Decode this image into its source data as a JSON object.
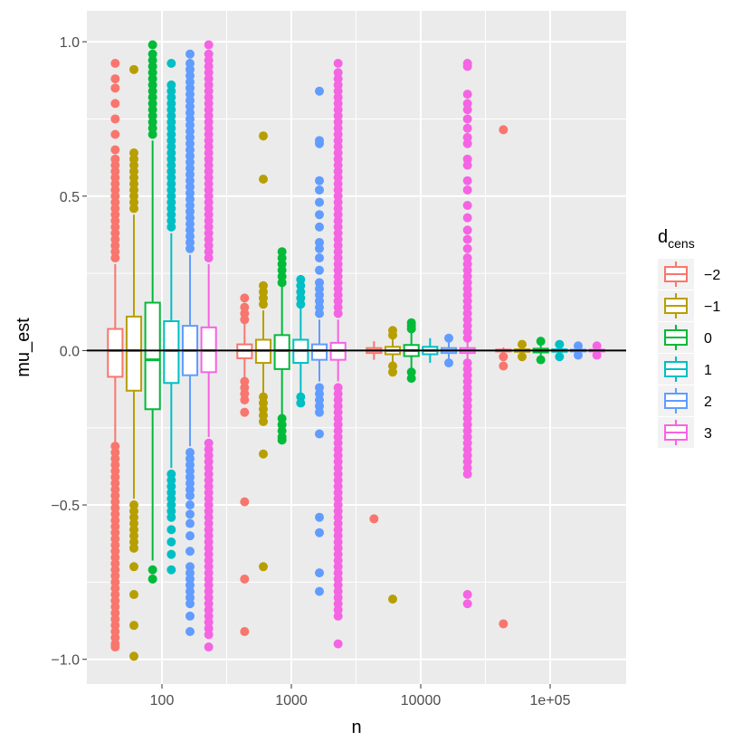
{
  "chart_data": {
    "type": "boxplot",
    "xlabel": "n",
    "ylabel": "mu_est",
    "x_scale": "log10",
    "ylim": [
      -1.08,
      1.1
    ],
    "y_ticks": [
      {
        "value": 1.0,
        "label": "1.0"
      },
      {
        "value": 0.5,
        "label": "0.5"
      },
      {
        "value": 0.0,
        "label": "0.0"
      },
      {
        "value": -0.5,
        "label": "−0.5"
      },
      {
        "value": -1.0,
        "label": "−1.0"
      }
    ],
    "categories": [
      {
        "value": 100,
        "label": "100"
      },
      {
        "value": 1000,
        "label": "1000"
      },
      {
        "value": 10000,
        "label": "10000"
      },
      {
        "value": 100000,
        "label": "1e+05"
      }
    ],
    "hline": 0,
    "grid": true,
    "legend": {
      "title_main": "d",
      "title_sub": "cens",
      "position": "right"
    },
    "series": [
      {
        "name": "−2",
        "color": "#F8766D",
        "boxes": [
          {
            "n": 100,
            "q1": -0.085,
            "median": 0.0,
            "q3": 0.07,
            "lower": -0.3,
            "upper": 0.28,
            "outliers_high": [
              0.3,
              0.32,
              0.34,
              0.36,
              0.38,
              0.4,
              0.42,
              0.44,
              0.46,
              0.48,
              0.5,
              0.52,
              0.54,
              0.56,
              0.58,
              0.6,
              0.62,
              0.65,
              0.7,
              0.75,
              0.8,
              0.85,
              0.88,
              0.93
            ],
            "outliers_low": [
              -0.31,
              -0.33,
              -0.35,
              -0.37,
              -0.39,
              -0.41,
              -0.43,
              -0.45,
              -0.47,
              -0.49,
              -0.51,
              -0.53,
              -0.55,
              -0.57,
              -0.59,
              -0.61,
              -0.63,
              -0.65,
              -0.67,
              -0.69,
              -0.71,
              -0.73,
              -0.75,
              -0.77,
              -0.79,
              -0.81,
              -0.83,
              -0.85,
              -0.87,
              -0.89,
              -0.91,
              -0.93,
              -0.95,
              -0.96
            ]
          },
          {
            "n": 1000,
            "q1": -0.025,
            "median": 0.0,
            "q3": 0.02,
            "lower": -0.09,
            "upper": 0.09,
            "outliers_high": [
              0.1,
              0.12,
              0.14,
              0.17
            ],
            "outliers_low": [
              -0.1,
              -0.12,
              -0.14,
              -0.16,
              -0.2,
              -0.49,
              -0.74,
              -0.91
            ]
          },
          {
            "n": 10000,
            "q1": -0.008,
            "median": 0.0,
            "q3": 0.008,
            "lower": -0.03,
            "upper": 0.03,
            "outliers_high": [],
            "outliers_low": [
              -0.545
            ]
          },
          {
            "n": 100000,
            "q1": -0.003,
            "median": 0.0,
            "q3": 0.003,
            "lower": -0.01,
            "upper": 0.01,
            "outliers_high": [
              0.715
            ],
            "outliers_low": [
              -0.02,
              -0.05,
              -0.885
            ]
          }
        ]
      },
      {
        "name": "−1",
        "color": "#B79F00",
        "boxes": [
          {
            "n": 100,
            "q1": -0.13,
            "median": 0.0,
            "q3": 0.11,
            "lower": -0.48,
            "upper": 0.44,
            "outliers_high": [
              0.46,
              0.48,
              0.5,
              0.52,
              0.54,
              0.56,
              0.58,
              0.6,
              0.62,
              0.64,
              0.91
            ],
            "outliers_low": [
              -0.5,
              -0.52,
              -0.54,
              -0.56,
              -0.58,
              -0.6,
              -0.62,
              -0.64,
              -0.7,
              -0.79,
              -0.89,
              -0.99
            ]
          },
          {
            "n": 1000,
            "q1": -0.04,
            "median": 0.0,
            "q3": 0.035,
            "lower": -0.14,
            "upper": 0.13,
            "outliers_high": [
              0.15,
              0.17,
              0.19,
              0.21,
              0.555,
              0.695
            ],
            "outliers_low": [
              -0.15,
              -0.17,
              -0.19,
              -0.21,
              -0.23,
              -0.335,
              -0.7
            ]
          },
          {
            "n": 10000,
            "q1": -0.012,
            "median": 0.0,
            "q3": 0.012,
            "lower": -0.045,
            "upper": 0.045,
            "outliers_high": [
              0.05,
              0.065
            ],
            "outliers_low": [
              -0.05,
              -0.07,
              -0.805
            ]
          },
          {
            "n": 100000,
            "q1": -0.004,
            "median": 0.0,
            "q3": 0.004,
            "lower": -0.015,
            "upper": 0.015,
            "outliers_high": [
              0.02
            ],
            "outliers_low": [
              -0.02
            ]
          }
        ]
      },
      {
        "name": "0",
        "color": "#00BA38",
        "boxes": [
          {
            "n": 100,
            "q1": -0.19,
            "median": -0.03,
            "q3": 0.155,
            "lower": -0.68,
            "upper": 0.68,
            "outliers_high": [
              0.7,
              0.72,
              0.74,
              0.76,
              0.78,
              0.8,
              0.82,
              0.84,
              0.86,
              0.88,
              0.9,
              0.92,
              0.94,
              0.96,
              0.99
            ],
            "outliers_low": [
              -0.71,
              -0.74
            ]
          },
          {
            "n": 1000,
            "q1": -0.06,
            "median": 0.0,
            "q3": 0.05,
            "lower": -0.21,
            "upper": 0.21,
            "outliers_high": [
              0.22,
              0.24,
              0.26,
              0.28,
              0.3,
              0.32
            ],
            "outliers_low": [
              -0.22,
              -0.24,
              -0.26,
              -0.28,
              -0.29
            ]
          },
          {
            "n": 10000,
            "q1": -0.018,
            "median": 0.0,
            "q3": 0.018,
            "lower": -0.06,
            "upper": 0.06,
            "outliers_high": [
              0.07,
              0.08,
              0.09
            ],
            "outliers_low": [
              -0.07,
              -0.09
            ]
          },
          {
            "n": 100000,
            "q1": -0.006,
            "median": 0.0,
            "q3": 0.006,
            "lower": -0.02,
            "upper": 0.02,
            "outliers_high": [
              0.03
            ],
            "outliers_low": [
              -0.03
            ]
          }
        ]
      },
      {
        "name": "1",
        "color": "#00BFC4",
        "boxes": [
          {
            "n": 100,
            "q1": -0.105,
            "median": 0.0,
            "q3": 0.095,
            "lower": -0.38,
            "upper": 0.38,
            "outliers_high": [
              0.4,
              0.42,
              0.44,
              0.46,
              0.48,
              0.5,
              0.52,
              0.54,
              0.56,
              0.58,
              0.6,
              0.62,
              0.64,
              0.66,
              0.68,
              0.7,
              0.72,
              0.74,
              0.76,
              0.78,
              0.8,
              0.82,
              0.84,
              0.86,
              0.93
            ],
            "outliers_low": [
              -0.4,
              -0.42,
              -0.44,
              -0.46,
              -0.48,
              -0.5,
              -0.52,
              -0.54,
              -0.58,
              -0.62,
              -0.66,
              -0.71
            ]
          },
          {
            "n": 1000,
            "q1": -0.04,
            "median": 0.0,
            "q3": 0.035,
            "lower": -0.14,
            "upper": 0.14,
            "outliers_high": [
              0.15,
              0.17,
              0.19,
              0.21,
              0.23
            ],
            "outliers_low": [
              -0.15,
              -0.17
            ]
          },
          {
            "n": 10000,
            "q1": -0.012,
            "median": 0.0,
            "q3": 0.012,
            "lower": -0.04,
            "upper": 0.04,
            "outliers_high": [],
            "outliers_low": []
          },
          {
            "n": 100000,
            "q1": -0.004,
            "median": 0.0,
            "q3": 0.004,
            "lower": -0.015,
            "upper": 0.015,
            "outliers_high": [
              0.02
            ],
            "outliers_low": [
              -0.02
            ]
          }
        ]
      },
      {
        "name": "2",
        "color": "#619CFF",
        "boxes": [
          {
            "n": 100,
            "q1": -0.08,
            "median": 0.0,
            "q3": 0.08,
            "lower": -0.31,
            "upper": 0.31,
            "outliers_high": [
              0.33,
              0.35,
              0.37,
              0.39,
              0.41,
              0.43,
              0.45,
              0.47,
              0.49,
              0.51,
              0.53,
              0.55,
              0.57,
              0.59,
              0.61,
              0.63,
              0.65,
              0.67,
              0.69,
              0.71,
              0.73,
              0.75,
              0.77,
              0.79,
              0.81,
              0.83,
              0.85,
              0.87,
              0.89,
              0.91,
              0.93,
              0.96
            ],
            "outliers_low": [
              -0.33,
              -0.35,
              -0.37,
              -0.39,
              -0.41,
              -0.43,
              -0.45,
              -0.47,
              -0.5,
              -0.53,
              -0.56,
              -0.6,
              -0.65,
              -0.7,
              -0.72,
              -0.74,
              -0.76,
              -0.78,
              -0.8,
              -0.82,
              -0.86,
              -0.91
            ]
          },
          {
            "n": 1000,
            "q1": -0.03,
            "median": 0.0,
            "q3": 0.02,
            "lower": -0.1,
            "upper": 0.1,
            "outliers_high": [
              0.12,
              0.14,
              0.16,
              0.18,
              0.2,
              0.22,
              0.26,
              0.3,
              0.33,
              0.35,
              0.4,
              0.44,
              0.48,
              0.52,
              0.55,
              0.67,
              0.68,
              0.84
            ],
            "outliers_low": [
              -0.12,
              -0.14,
              -0.16,
              -0.18,
              -0.2,
              -0.27,
              -0.54,
              -0.59,
              -0.72,
              -0.78
            ]
          },
          {
            "n": 10000,
            "q1": -0.008,
            "median": 0.0,
            "q3": 0.008,
            "lower": -0.03,
            "upper": 0.03,
            "outliers_high": [
              0.04
            ],
            "outliers_low": [
              -0.04
            ]
          },
          {
            "n": 100000,
            "q1": -0.003,
            "median": 0.0,
            "q3": 0.003,
            "lower": -0.01,
            "upper": 0.01,
            "outliers_high": [
              0.015
            ],
            "outliers_low": [
              -0.015
            ]
          }
        ]
      },
      {
        "name": "3",
        "color": "#F564E3",
        "boxes": [
          {
            "n": 100,
            "q1": -0.07,
            "median": 0.0,
            "q3": 0.075,
            "lower": -0.28,
            "upper": 0.28,
            "outliers_high": [
              0.3,
              0.32,
              0.34,
              0.36,
              0.38,
              0.4,
              0.42,
              0.44,
              0.46,
              0.48,
              0.5,
              0.52,
              0.54,
              0.56,
              0.58,
              0.6,
              0.62,
              0.64,
              0.66,
              0.68,
              0.7,
              0.72,
              0.74,
              0.76,
              0.78,
              0.8,
              0.82,
              0.84,
              0.86,
              0.88,
              0.9,
              0.92,
              0.94,
              0.96,
              0.99
            ],
            "outliers_low": [
              -0.3,
              -0.32,
              -0.34,
              -0.36,
              -0.38,
              -0.4,
              -0.42,
              -0.44,
              -0.46,
              -0.48,
              -0.5,
              -0.52,
              -0.54,
              -0.56,
              -0.58,
              -0.6,
              -0.62,
              -0.64,
              -0.66,
              -0.68,
              -0.7,
              -0.72,
              -0.74,
              -0.76,
              -0.78,
              -0.8,
              -0.82,
              -0.84,
              -0.86,
              -0.88,
              -0.9,
              -0.92,
              -0.96
            ]
          },
          {
            "n": 1000,
            "q1": -0.03,
            "median": 0.0,
            "q3": 0.025,
            "lower": -0.1,
            "upper": 0.1,
            "outliers_high": [
              0.12,
              0.14,
              0.16,
              0.18,
              0.2,
              0.22,
              0.24,
              0.26,
              0.28,
              0.3,
              0.32,
              0.34,
              0.36,
              0.38,
              0.4,
              0.42,
              0.44,
              0.46,
              0.48,
              0.5,
              0.52,
              0.54,
              0.56,
              0.58,
              0.6,
              0.62,
              0.64,
              0.66,
              0.68,
              0.7,
              0.72,
              0.74,
              0.76,
              0.78,
              0.8,
              0.82,
              0.84,
              0.86,
              0.88,
              0.9,
              0.93
            ],
            "outliers_low": [
              -0.12,
              -0.14,
              -0.16,
              -0.18,
              -0.2,
              -0.22,
              -0.24,
              -0.26,
              -0.28,
              -0.3,
              -0.32,
              -0.34,
              -0.36,
              -0.38,
              -0.4,
              -0.42,
              -0.44,
              -0.46,
              -0.48,
              -0.5,
              -0.52,
              -0.54,
              -0.56,
              -0.58,
              -0.6,
              -0.62,
              -0.64,
              -0.66,
              -0.68,
              -0.7,
              -0.72,
              -0.74,
              -0.76,
              -0.78,
              -0.8,
              -0.82,
              -0.84,
              -0.86,
              -0.95
            ]
          },
          {
            "n": 10000,
            "q1": -0.008,
            "median": 0.0,
            "q3": 0.008,
            "lower": -0.03,
            "upper": 0.03,
            "outliers_high": [
              0.04,
              0.06,
              0.08,
              0.1,
              0.12,
              0.14,
              0.16,
              0.18,
              0.2,
              0.22,
              0.24,
              0.26,
              0.28,
              0.3,
              0.33,
              0.36,
              0.39,
              0.43,
              0.47,
              0.52,
              0.55,
              0.6,
              0.62,
              0.67,
              0.69,
              0.72,
              0.75,
              0.78,
              0.8,
              0.83,
              0.92,
              0.93
            ],
            "outliers_low": [
              -0.04,
              -0.06,
              -0.08,
              -0.1,
              -0.12,
              -0.14,
              -0.16,
              -0.18,
              -0.2,
              -0.22,
              -0.24,
              -0.26,
              -0.28,
              -0.3,
              -0.32,
              -0.34,
              -0.36,
              -0.38,
              -0.4,
              -0.79,
              -0.82
            ]
          },
          {
            "n": 100000,
            "q1": -0.003,
            "median": 0.0,
            "q3": 0.003,
            "lower": -0.01,
            "upper": 0.01,
            "outliers_high": [
              0.015
            ],
            "outliers_low": [
              -0.015
            ]
          }
        ]
      }
    ]
  }
}
